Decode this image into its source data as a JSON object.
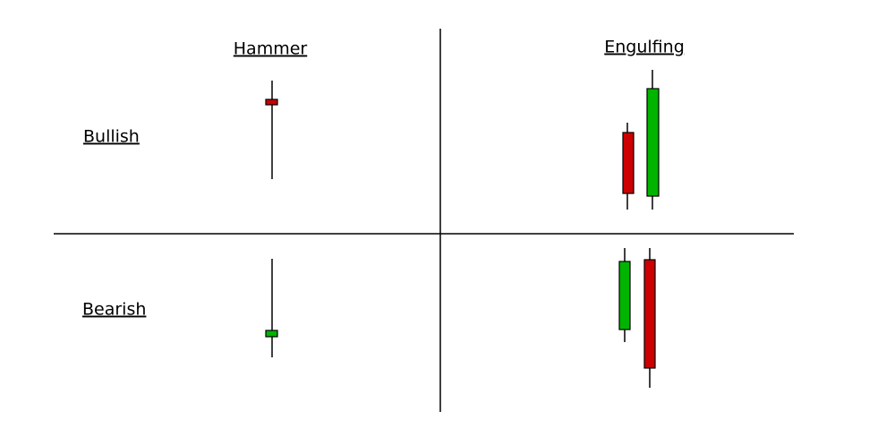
{
  "columns": {
    "hammer": "Hammer",
    "engulfing": "Engulfing"
  },
  "rows": {
    "bullish": "Bullish",
    "bearish": "Bearish"
  }
}
